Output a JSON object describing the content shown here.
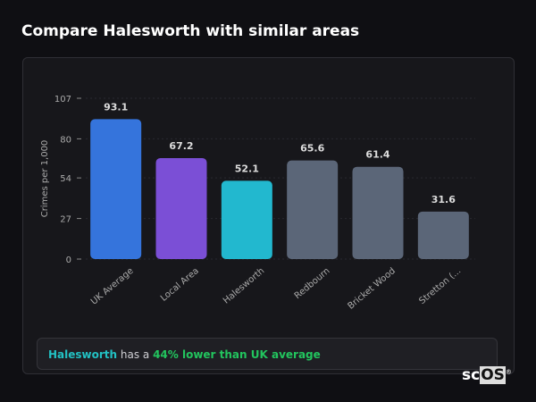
{
  "title": "Compare Halesworth with similar areas",
  "chart_data": {
    "type": "bar",
    "categories": [
      "UK Average",
      "Local Area",
      "Halesworth",
      "Redbourn",
      "Bricket Wood",
      "Stretton (..."
    ],
    "values": [
      93.1,
      67.2,
      52.1,
      65.6,
      61.4,
      31.6
    ],
    "data_labels": [
      "93.1",
      "67.2",
      "52.1",
      "65.6",
      "61.4",
      "31.6"
    ],
    "colors": [
      "#3574dc",
      "#7b4fd6",
      "#22b8cf",
      "#5b6678",
      "#5b6678",
      "#5b6678"
    ],
    "ylabel": "Crimes per 1,000",
    "xlabel": "",
    "ylim": [
      0,
      107
    ],
    "yticks": [
      0,
      27,
      54,
      80,
      107
    ],
    "grid": true,
    "legend": "none"
  },
  "footer": {
    "area": "Halesworth",
    "middle": " has a ",
    "comparison": "44% lower than UK average"
  },
  "logo": {
    "text_a": "sc",
    "text_b": "OS",
    "mark": "®"
  }
}
